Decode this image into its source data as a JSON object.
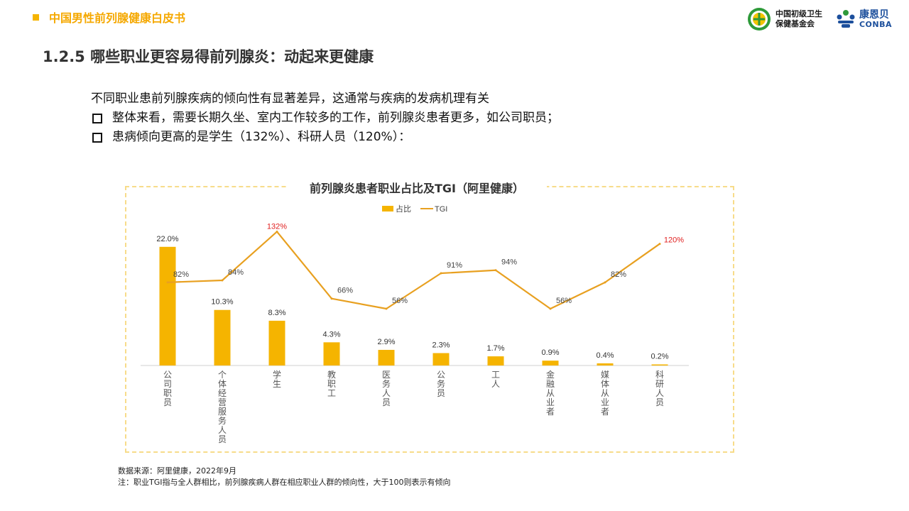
{
  "header": {
    "brand": "中国男性前列腺健康白皮书",
    "logo1_line1": "中国初级卫生",
    "logo1_line2": "保健基金会",
    "logo2_cn": "康恩贝",
    "logo2_en": "CONBA"
  },
  "section_title": "1.2.5 哪些职业更容易得前列腺炎：动起来更健康",
  "intro": {
    "lead": "不同职业患前列腺疾病的倾向性有显著差异，这通常与疾病的发病机理有关",
    "bullet1": "整体来看，需要长期久坐、室内工作较多的工作，前列腺炎患者更多，如公司职员；",
    "bullet2": "患病倾向更高的是学生（132%）、科研人员（120%）："
  },
  "chart_data": {
    "type": "bar",
    "title": "前列腺炎患者职业占比及TGI（阿里健康）",
    "categories": [
      "公司职员",
      "个体经营/服务人员",
      "学生",
      "教职工",
      "医务人员",
      "公务员",
      "工人",
      "金融从业者",
      "媒体从业者",
      "科研人员"
    ],
    "series": [
      {
        "name": "占比",
        "type": "bar",
        "values": [
          22.0,
          10.3,
          8.3,
          4.3,
          2.9,
          2.3,
          1.7,
          0.9,
          0.4,
          0.2
        ],
        "labels": [
          "22.0%",
          "10.3%",
          "8.3%",
          "4.3%",
          "2.9%",
          "2.3%",
          "1.7%",
          "0.9%",
          "0.4%",
          "0.2%"
        ]
      },
      {
        "name": "TGI",
        "type": "line",
        "values": [
          82,
          84,
          132,
          66,
          56,
          91,
          94,
          56,
          82,
          120
        ],
        "labels": [
          "82%",
          "84%",
          "132%",
          "66%",
          "56%",
          "91%",
          "94%",
          "56%",
          "82%",
          "120%"
        ]
      }
    ],
    "highlight_label_indices": [
      2,
      9
    ],
    "ylim_bar": [
      0,
      25
    ],
    "ylim_line": [
      0,
      140
    ],
    "legend_position": "top",
    "colors": {
      "bar": "#f5b400",
      "line": "#e8a020",
      "highlight": "#e02020"
    }
  },
  "source": {
    "line1": "数据来源：阿里健康，2022年9月",
    "line2": "注：职业TGI指与全人群相比，前列腺疾病人群在相应职业人群的倾向性，大于100则表示有倾向"
  }
}
